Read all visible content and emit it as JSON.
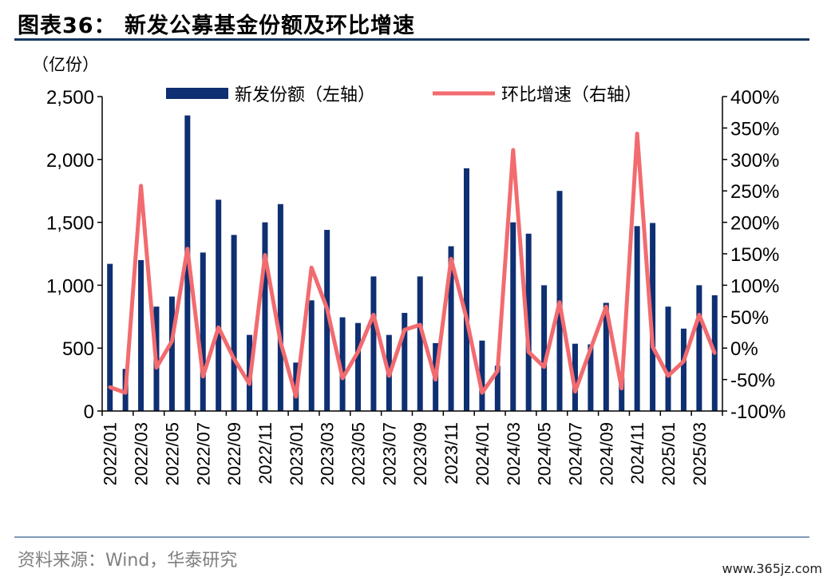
{
  "header": {
    "title": "图表36：   新发公募基金份额及环比增速"
  },
  "footer": {
    "source": "资料来源：Wind，华泰研究",
    "watermark": "www.365jz.com"
  },
  "colors": {
    "bar": "#0e2f72",
    "line": "#f26b6f",
    "title_rule": "#17375e"
  },
  "chart_data": {
    "type": "bar",
    "y_left_unit": "（亿份）",
    "categories": [
      "2022/01",
      "2022/02",
      "2022/03",
      "2022/04",
      "2022/05",
      "2022/06",
      "2022/07",
      "2022/08",
      "2022/09",
      "2022/10",
      "2022/11",
      "2022/12",
      "2023/01",
      "2023/02",
      "2023/03",
      "2023/04",
      "2023/05",
      "2023/06",
      "2023/07",
      "2023/08",
      "2023/09",
      "2023/10",
      "2023/11",
      "2023/12",
      "2024/01",
      "2024/02",
      "2024/03",
      "2024/04",
      "2024/05",
      "2024/06",
      "2024/07",
      "2024/08",
      "2024/09",
      "2024/10",
      "2024/11",
      "2024/12",
      "2025/01",
      "2025/02",
      "2025/03",
      "2025/04"
    ],
    "x_tick_labels": [
      "2022/01",
      "2022/03",
      "2022/05",
      "2022/07",
      "2022/09",
      "2022/11",
      "2023/01",
      "2023/03",
      "2023/05",
      "2023/07",
      "2023/09",
      "2023/11",
      "2024/01",
      "2024/03",
      "2024/05",
      "2024/07",
      "2024/09",
      "2024/11",
      "2025/01",
      "2025/03"
    ],
    "series": [
      {
        "name": "新发份额（左轴）",
        "axis": "left",
        "kind": "bar",
        "values": [
          1170,
          335,
          1200,
          830,
          910,
          2350,
          1260,
          1680,
          1400,
          605,
          1500,
          1645,
          385,
          880,
          1440,
          745,
          700,
          1070,
          605,
          780,
          1070,
          540,
          1310,
          1930,
          560,
          360,
          1500,
          1410,
          1000,
          1750,
          535,
          530,
          860,
          270,
          1470,
          1495,
          830,
          655,
          1000,
          920
        ]
      },
      {
        "name": "环比增速（右轴）",
        "axis": "right",
        "kind": "line",
        "values": [
          -62,
          -71,
          258,
          -31,
          11,
          158,
          -45,
          33,
          -17,
          -57,
          148,
          10,
          -77,
          128,
          63,
          -48,
          -6,
          53,
          -44,
          29,
          37,
          -50,
          142,
          47,
          -71,
          -36,
          315,
          -6,
          -30,
          73,
          -69,
          -1,
          66,
          -64,
          341,
          2,
          -44,
          -21,
          53,
          -8
        ]
      }
    ],
    "y_left": {
      "min": 0,
      "max": 2500,
      "ticks": [
        0,
        500,
        1000,
        1500,
        2000,
        2500
      ],
      "tick_labels": [
        "0",
        "500",
        "1,000",
        "1,500",
        "2,000",
        "2,500"
      ]
    },
    "y_right": {
      "min": -100,
      "max": 400,
      "ticks": [
        -100,
        -50,
        0,
        50,
        100,
        150,
        200,
        250,
        300,
        350,
        400
      ],
      "tick_labels": [
        "-100%",
        "-50%",
        "0%",
        "50%",
        "100%",
        "150%",
        "200%",
        "250%",
        "300%",
        "350%",
        "400%"
      ]
    },
    "legend_position": "top",
    "grid": false
  }
}
